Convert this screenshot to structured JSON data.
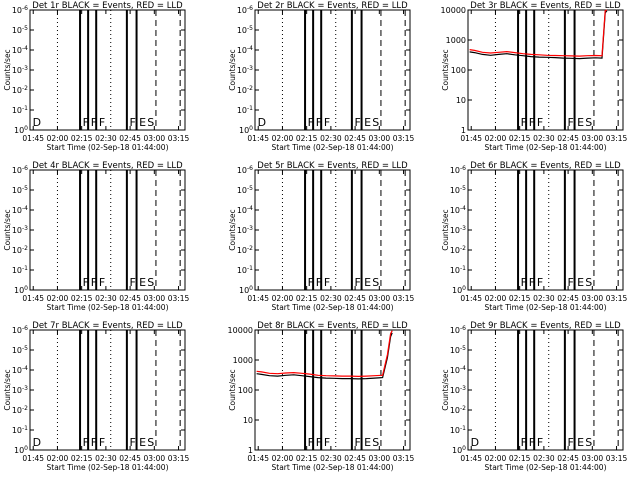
{
  "common": {
    "x_ticks": [
      "01:45",
      "02:00",
      "02:15",
      "02:30",
      "02:45",
      "03:00",
      "03:15"
    ],
    "x_label": "Start Time (02-Sep-18 01:44:00)",
    "y_label": "Counts/sec",
    "flag_letters": [
      "D",
      "F",
      "F",
      "F",
      "F",
      "E",
      "S"
    ]
  },
  "chart_data": [
    {
      "type": "line",
      "title": "Det 1r BLACK = Events, RED = LLD",
      "ylim": [
        1,
        10000
      ],
      "log_y": true,
      "x_range_minutes": [
        -1,
        95
      ],
      "y_tick_labels": [
        "10^0",
        "10^-1",
        "10^-2",
        "10^-3",
        "10^-4",
        "10^-5",
        "10^-6"
      ],
      "show_D": true,
      "series": []
    },
    {
      "type": "line",
      "title": "Det 2r BLACK = Events, RED = LLD",
      "ylim": [
        1,
        10000
      ],
      "log_y": true,
      "x_range_minutes": [
        -1,
        95
      ],
      "y_tick_labels": [
        "10^0",
        "10^-1",
        "10^-2",
        "10^-3",
        "10^-4",
        "10^-5",
        "10^-6"
      ],
      "show_D": true,
      "series": []
    },
    {
      "type": "line",
      "title": "Det 3r BLACK = Events, RED = LLD",
      "ylim": [
        1,
        10000
      ],
      "log_y": true,
      "x_range_minutes": [
        -1,
        95
      ],
      "y_tick_labels": [
        "1",
        "10",
        "100",
        "1000",
        "10000"
      ],
      "show_D": false,
      "series": [
        {
          "name": "Events",
          "color": "#000000",
          "points": [
            [
              0,
              400
            ],
            [
              3,
              380
            ],
            [
              8,
              330
            ],
            [
              13,
              310
            ],
            [
              18,
              330
            ],
            [
              23,
              350
            ],
            [
              28,
              320
            ],
            [
              33,
              300
            ],
            [
              38,
              280
            ],
            [
              43,
              270
            ],
            [
              48,
              265
            ],
            [
              53,
              260
            ],
            [
              58,
              250
            ],
            [
              63,
              245
            ],
            [
              68,
              240
            ],
            [
              73,
              250
            ],
            [
              78,
              255
            ],
            [
              82,
              250
            ],
            [
              84,
              8000
            ],
            [
              85,
              9500
            ]
          ]
        },
        {
          "name": "LLD",
          "color": "#ff0000",
          "points": [
            [
              0,
              480
            ],
            [
              3,
              450
            ],
            [
              8,
              390
            ],
            [
              13,
              370
            ],
            [
              18,
              390
            ],
            [
              23,
              410
            ],
            [
              28,
              380
            ],
            [
              33,
              350
            ],
            [
              38,
              330
            ],
            [
              43,
              320
            ],
            [
              48,
              310
            ],
            [
              53,
              305
            ],
            [
              58,
              300
            ],
            [
              63,
              295
            ],
            [
              68,
              290
            ],
            [
              73,
              300
            ],
            [
              78,
              305
            ],
            [
              82,
              300
            ],
            [
              84,
              9500
            ],
            [
              85,
              11000
            ]
          ]
        }
      ]
    },
    {
      "type": "line",
      "title": "Det 4r BLACK = Events, RED = LLD",
      "ylim": [
        1,
        10000
      ],
      "log_y": true,
      "x_range_minutes": [
        -1,
        95
      ],
      "y_tick_labels": [
        "10^0",
        "10^-1",
        "10^-2",
        "10^-3",
        "10^-4",
        "10^-5",
        "10^-6"
      ],
      "show_D": false,
      "series": []
    },
    {
      "type": "line",
      "title": "Det 5r BLACK = Events, RED = LLD",
      "ylim": [
        1,
        10000
      ],
      "log_y": true,
      "x_range_minutes": [
        -1,
        95
      ],
      "y_tick_labels": [
        "10^0",
        "10^-1",
        "10^-2",
        "10^-3",
        "10^-4",
        "10^-5",
        "10^-6"
      ],
      "show_D": false,
      "series": []
    },
    {
      "type": "line",
      "title": "Det 6r BLACK = Events, RED = LLD",
      "ylim": [
        1,
        10000
      ],
      "log_y": true,
      "x_range_minutes": [
        -1,
        95
      ],
      "y_tick_labels": [
        "10^0",
        "10^-1",
        "10^-2",
        "10^-3",
        "10^-4",
        "10^-5",
        "10^-6"
      ],
      "show_D": false,
      "series": []
    },
    {
      "type": "line",
      "title": "Det 7r BLACK = Events, RED = LLD",
      "ylim": [
        1,
        10000
      ],
      "log_y": true,
      "x_range_minutes": [
        -1,
        95
      ],
      "y_tick_labels": [
        "10^0",
        "10^-1",
        "10^-2",
        "10^-3",
        "10^-4",
        "10^-5",
        "10^-6"
      ],
      "show_D": true,
      "series": []
    },
    {
      "type": "line",
      "title": "Det 8r BLACK = Events, RED = LLD",
      "ylim": [
        1,
        10000
      ],
      "log_y": true,
      "x_range_minutes": [
        -1,
        95
      ],
      "y_tick_labels": [
        "1",
        "10",
        "100",
        "1000",
        "10000"
      ],
      "show_D": false,
      "series": [
        {
          "name": "Events",
          "color": "#000000",
          "points": [
            [
              0,
              350
            ],
            [
              3,
              330
            ],
            [
              8,
              300
            ],
            [
              13,
              290
            ],
            [
              18,
              310
            ],
            [
              23,
              320
            ],
            [
              28,
              300
            ],
            [
              33,
              280
            ],
            [
              38,
              260
            ],
            [
              43,
              250
            ],
            [
              48,
              245
            ],
            [
              53,
              240
            ],
            [
              58,
              240
            ],
            [
              63,
              235
            ],
            [
              68,
              240
            ],
            [
              73,
              250
            ],
            [
              78,
              260
            ],
            [
              81,
              1200
            ],
            [
              83,
              6000
            ],
            [
              84,
              8000
            ]
          ]
        },
        {
          "name": "LLD",
          "color": "#ff0000",
          "points": [
            [
              0,
              420
            ],
            [
              3,
              400
            ],
            [
              8,
              360
            ],
            [
              13,
              350
            ],
            [
              18,
              370
            ],
            [
              23,
              380
            ],
            [
              28,
              360
            ],
            [
              33,
              340
            ],
            [
              38,
              310
            ],
            [
              43,
              300
            ],
            [
              48,
              295
            ],
            [
              53,
              290
            ],
            [
              58,
              290
            ],
            [
              63,
              285
            ],
            [
              68,
              290
            ],
            [
              73,
              300
            ],
            [
              78,
              310
            ],
            [
              81,
              1500
            ],
            [
              83,
              7500
            ],
            [
              84,
              9500
            ]
          ]
        }
      ]
    },
    {
      "type": "line",
      "title": "Det 9r BLACK = Events, RED = LLD",
      "ylim": [
        1,
        10000
      ],
      "log_y": true,
      "x_range_minutes": [
        -1,
        95
      ],
      "y_tick_labels": [
        "10^0",
        "10^-1",
        "10^-2",
        "10^-3",
        "10^-4",
        "10^-5",
        "10^-6"
      ],
      "show_D": true,
      "series": []
    }
  ],
  "markers": {
    "thick_solid_minutes": [
      30,
      35,
      40,
      59,
      65
    ],
    "dashed_minutes": [
      77,
      92
    ],
    "dotted_minutes": [
      16,
      49
    ],
    "flag_letter_minutes": [
      0,
      31,
      36,
      41,
      60,
      66,
      71
    ]
  }
}
